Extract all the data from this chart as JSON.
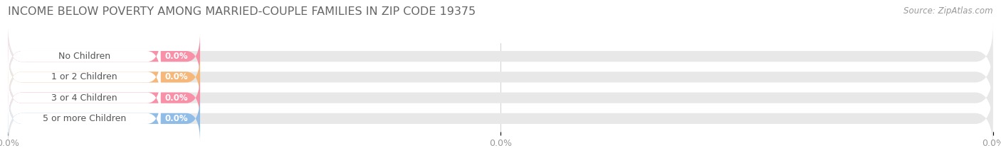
{
  "title": "INCOME BELOW POVERTY AMONG MARRIED-COUPLE FAMILIES IN ZIP CODE 19375",
  "source": "Source: ZipAtlas.com",
  "categories": [
    "No Children",
    "1 or 2 Children",
    "3 or 4 Children",
    "5 or more Children"
  ],
  "values": [
    0.0,
    0.0,
    0.0,
    0.0
  ],
  "bar_colors": [
    "#f890a8",
    "#f5b87a",
    "#f890a8",
    "#90bce8"
  ],
  "label_dot_colors": [
    "#f890a8",
    "#f5b87a",
    "#f890a8",
    "#90bce8"
  ],
  "background_color": "#ffffff",
  "bar_bg_color": "#e8e8e8",
  "white_label_color": "#ffffff",
  "tick_label": "0.0%",
  "bar_height": 0.52,
  "title_fontsize": 11.5,
  "label_fontsize": 9,
  "value_fontsize": 8.5,
  "source_fontsize": 8.5,
  "tick_fontsize": 9,
  "label_text_color": "#555555",
  "value_text_color": "#ffffff",
  "tick_color": "#999999"
}
